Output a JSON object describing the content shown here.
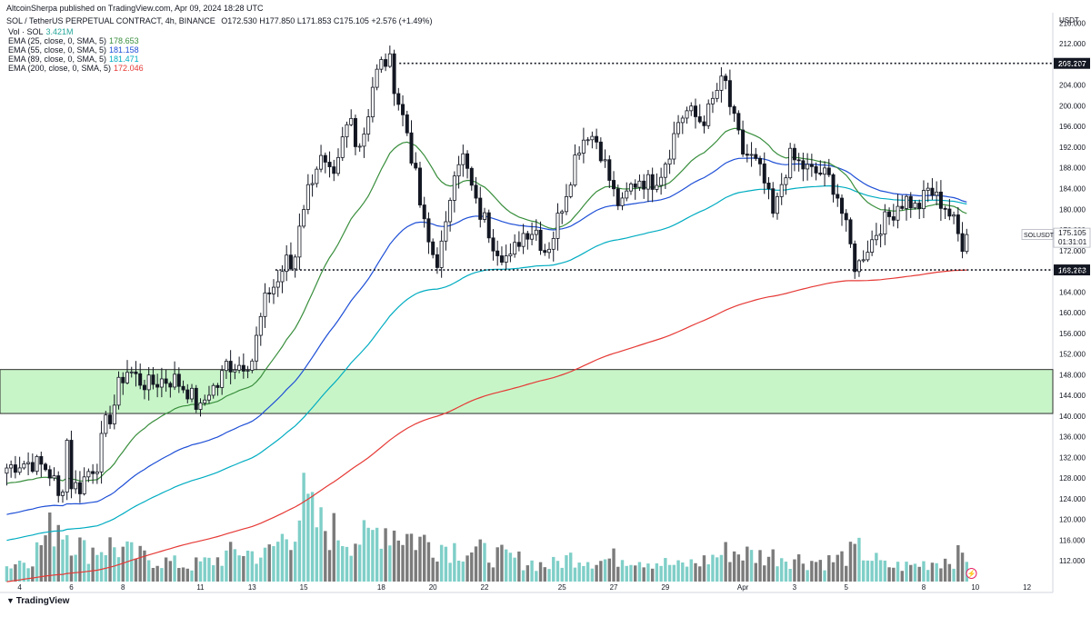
{
  "header": {
    "publisher_line": "AltcoinSherpa published on TradingView.com, Apr 09, 2024 18:28 UTC",
    "symbol": "SOL / TetherUS PERPETUAL CONTRACT, 4h, BINANCE",
    "ohlc": "O172.530 H177.850 L171.853 C175.105 +2.576 (+1.49%)"
  },
  "indicators": [
    {
      "label": "Vol · SOL",
      "value": "3.421M",
      "color": "#26a69a"
    },
    {
      "label": "EMA (25, close, 0, SMA, 5)",
      "value": "178.653",
      "color": "#388e3c"
    },
    {
      "label": "EMA (55, close, 0, SMA, 5)",
      "value": "181.158",
      "color": "#1e4fd6"
    },
    {
      "label": "EMA (89, close, 0, SMA, 5)",
      "value": "181.471",
      "color": "#00acc1"
    },
    {
      "label": "EMA (200, close, 0, SMA, 5)",
      "value": "172.046",
      "color": "#e53935"
    }
  ],
  "currency_label": "USDT",
  "symbol_tag": "SOLUSDT.P",
  "last_price": "175.105",
  "countdown": "01:31:01",
  "footer_brand": "TradingView",
  "colors": {
    "up_body": "#ffffff",
    "down_body": "#131722",
    "candle_outline": "#131722",
    "zone_fill": "#c8f5c8",
    "vol_up": "#7fcfc8",
    "vol_down": "#7b7b7b"
  },
  "chart_data": {
    "type": "candlestick",
    "title": "SOL / TetherUS PERPETUAL CONTRACT, 4h, BINANCE",
    "ylabel": "USDT",
    "ylim": [
      108,
      218
    ],
    "yticks": [
      112,
      116,
      120,
      124,
      128,
      132,
      136,
      140,
      144,
      148,
      152,
      156,
      160,
      164,
      168,
      172,
      176,
      180,
      184,
      188,
      192,
      196,
      200,
      204,
      208,
      212,
      216
    ],
    "x_ticks": [
      {
        "label": "4",
        "day": 4
      },
      {
        "label": "6",
        "day": 6
      },
      {
        "label": "8",
        "day": 8
      },
      {
        "label": "11",
        "day": 11
      },
      {
        "label": "13",
        "day": 13
      },
      {
        "label": "15",
        "day": 15
      },
      {
        "label": "18",
        "day": 18
      },
      {
        "label": "20",
        "day": 20
      },
      {
        "label": "22",
        "day": 22
      },
      {
        "label": "25",
        "day": 25
      },
      {
        "label": "27",
        "day": 27
      },
      {
        "label": "29",
        "day": 29
      },
      {
        "label": "Apr",
        "day": 32
      },
      {
        "label": "3",
        "day": 34
      },
      {
        "label": "5",
        "day": 36
      },
      {
        "label": "8",
        "day": 39
      },
      {
        "label": "10",
        "day": 41
      },
      {
        "label": "12",
        "day": 43
      }
    ],
    "levels": [
      {
        "name": "resistance",
        "value": 208.207,
        "label": "208.207"
      },
      {
        "name": "support",
        "value": 168.263,
        "label": "168.263"
      }
    ],
    "zone": {
      "low": 140.5,
      "high": 149.0
    },
    "close_anchors": [
      [
        3.5,
        130
      ],
      [
        4.0,
        131
      ],
      [
        4.5,
        131
      ],
      [
        5.0,
        130
      ],
      [
        5.3,
        128
      ],
      [
        5.6,
        122
      ],
      [
        5.8,
        137
      ],
      [
        6.0,
        127
      ],
      [
        6.3,
        126
      ],
      [
        6.6,
        129
      ],
      [
        7.0,
        131
      ],
      [
        7.3,
        138
      ],
      [
        7.6,
        141
      ],
      [
        7.9,
        147
      ],
      [
        8.2,
        149
      ],
      [
        8.6,
        147
      ],
      [
        9.0,
        146
      ],
      [
        9.5,
        147
      ],
      [
        10.0,
        147
      ],
      [
        10.5,
        145
      ],
      [
        11.0,
        141
      ],
      [
        11.3,
        145
      ],
      [
        11.7,
        146
      ],
      [
        12.0,
        150
      ],
      [
        12.5,
        150
      ],
      [
        13.0,
        151
      ],
      [
        13.3,
        158
      ],
      [
        13.6,
        164
      ],
      [
        14.0,
        166
      ],
      [
        14.3,
        170
      ],
      [
        14.6,
        168
      ],
      [
        14.8,
        177
      ],
      [
        15.0,
        181
      ],
      [
        15.3,
        186
      ],
      [
        15.6,
        190
      ],
      [
        15.9,
        187
      ],
      [
        16.2,
        185
      ],
      [
        16.5,
        193
      ],
      [
        16.8,
        198
      ],
      [
        17.1,
        192
      ],
      [
        17.4,
        196
      ],
      [
        17.7,
        205
      ],
      [
        18.0,
        208
      ],
      [
        18.3,
        209
      ],
      [
        18.6,
        202
      ],
      [
        19.0,
        195
      ],
      [
        19.3,
        187
      ],
      [
        19.6,
        178
      ],
      [
        19.9,
        172
      ],
      [
        20.2,
        170
      ],
      [
        20.5,
        176
      ],
      [
        20.8,
        188
      ],
      [
        21.1,
        191
      ],
      [
        21.4,
        186
      ],
      [
        21.7,
        180
      ],
      [
        22.0,
        178
      ],
      [
        22.3,
        174
      ],
      [
        22.6,
        172
      ],
      [
        23.0,
        170
      ],
      [
        23.3,
        174
      ],
      [
        23.6,
        176
      ],
      [
        24.0,
        176
      ],
      [
        24.3,
        172
      ],
      [
        24.6,
        174
      ],
      [
        25.0,
        181
      ],
      [
        25.3,
        186
      ],
      [
        25.6,
        192
      ],
      [
        26.0,
        195
      ],
      [
        26.4,
        193
      ],
      [
        26.7,
        188
      ],
      [
        27.0,
        183
      ],
      [
        27.3,
        180
      ],
      [
        27.6,
        184
      ],
      [
        28.0,
        186
      ],
      [
        28.4,
        185
      ],
      [
        28.8,
        187
      ],
      [
        29.2,
        192
      ],
      [
        29.5,
        197
      ],
      [
        29.8,
        199
      ],
      [
        30.1,
        198
      ],
      [
        30.4,
        197
      ],
      [
        30.7,
        199
      ],
      [
        31.0,
        203
      ],
      [
        31.3,
        205
      ],
      [
        31.5,
        200
      ],
      [
        31.7,
        196
      ],
      [
        32.0,
        191
      ],
      [
        32.3,
        190
      ],
      [
        32.6,
        188
      ],
      [
        32.9,
        184
      ],
      [
        33.2,
        178
      ],
      [
        33.5,
        185
      ],
      [
        33.8,
        190
      ],
      [
        34.1,
        189
      ],
      [
        34.4,
        188
      ],
      [
        34.7,
        187
      ],
      [
        35.0,
        187
      ],
      [
        35.3,
        186
      ],
      [
        35.6,
        184
      ],
      [
        35.9,
        178
      ],
      [
        36.2,
        172
      ],
      [
        36.4,
        168
      ],
      [
        36.7,
        172
      ],
      [
        37.0,
        174
      ],
      [
        37.3,
        177
      ],
      [
        37.6,
        178
      ],
      [
        38.0,
        181
      ],
      [
        38.4,
        182
      ],
      [
        38.7,
        180
      ],
      [
        39.0,
        182
      ],
      [
        39.2,
        184
      ],
      [
        39.5,
        182
      ],
      [
        39.8,
        181
      ],
      [
        40.0,
        179
      ],
      [
        40.2,
        177
      ],
      [
        40.4,
        174
      ],
      [
        40.6,
        173
      ],
      [
        40.8,
        175.105
      ]
    ],
    "vol_anchors": [
      [
        3.5,
        0.15
      ],
      [
        4.5,
        0.25
      ],
      [
        5.5,
        0.6
      ],
      [
        6.5,
        0.3
      ],
      [
        7.5,
        0.35
      ],
      [
        8.5,
        0.25
      ],
      [
        9.5,
        0.2
      ],
      [
        10.5,
        0.15
      ],
      [
        11.5,
        0.2
      ],
      [
        12.5,
        0.3
      ],
      [
        13.5,
        0.25
      ],
      [
        14.5,
        0.5
      ],
      [
        15.0,
        0.75
      ],
      [
        15.5,
        0.55
      ],
      [
        16.5,
        0.45
      ],
      [
        17.5,
        0.4
      ],
      [
        18.0,
        0.55
      ],
      [
        18.5,
        0.5
      ],
      [
        19.5,
        0.4
      ],
      [
        20.5,
        0.35
      ],
      [
        21.5,
        0.3
      ],
      [
        22.5,
        0.25
      ],
      [
        23.5,
        0.2
      ],
      [
        24.5,
        0.15
      ],
      [
        25.5,
        0.25
      ],
      [
        26.5,
        0.2
      ],
      [
        27.5,
        0.25
      ],
      [
        28.5,
        0.2
      ],
      [
        29.5,
        0.15
      ],
      [
        30.5,
        0.2
      ],
      [
        31.5,
        0.3
      ],
      [
        32.5,
        0.25
      ],
      [
        33.5,
        0.25
      ],
      [
        34.5,
        0.2
      ],
      [
        35.5,
        0.2
      ],
      [
        36.5,
        0.3
      ],
      [
        37.5,
        0.15
      ],
      [
        38.5,
        0.15
      ],
      [
        39.5,
        0.2
      ],
      [
        40.5,
        0.25
      ]
    ]
  }
}
